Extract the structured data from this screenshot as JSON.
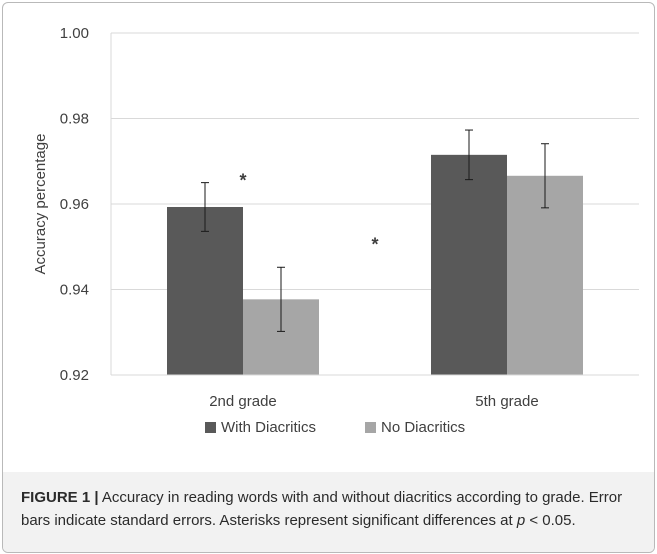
{
  "chart_data": {
    "type": "bar",
    "categories": [
      "2nd grade",
      "5th grade"
    ],
    "series": [
      {
        "name": "With Diacritics",
        "values": [
          0.9593,
          0.9715
        ],
        "errors": [
          0.0057,
          0.0058
        ],
        "color": "#595959"
      },
      {
        "name": "No Diacritics",
        "values": [
          0.9377,
          0.9666
        ],
        "errors": [
          0.0075,
          0.0075
        ],
        "color": "#a6a6a6"
      }
    ],
    "ylabel": "Accuracy percentage",
    "xlabel": "",
    "ylim": [
      0.92,
      1.0
    ],
    "yticks": [
      "0.92",
      "0.94",
      "0.96",
      "0.98",
      "1.00"
    ],
    "grid": true,
    "legend_position": "bottom",
    "annotations": [
      {
        "text": "*",
        "x_category": "2nd grade",
        "y": 0.966
      },
      {
        "text": "*",
        "between": [
          "2nd grade",
          "5th grade"
        ],
        "y": 0.951
      }
    ]
  },
  "caption": {
    "label": "FIGURE 1 |",
    "text_before_p": " Accuracy in reading words with and without diacritics according to grade. Error bars indicate standard errors. Asterisks represent significant differences at ",
    "p_symbol": "p",
    "text_after_p": " < 0.05."
  }
}
